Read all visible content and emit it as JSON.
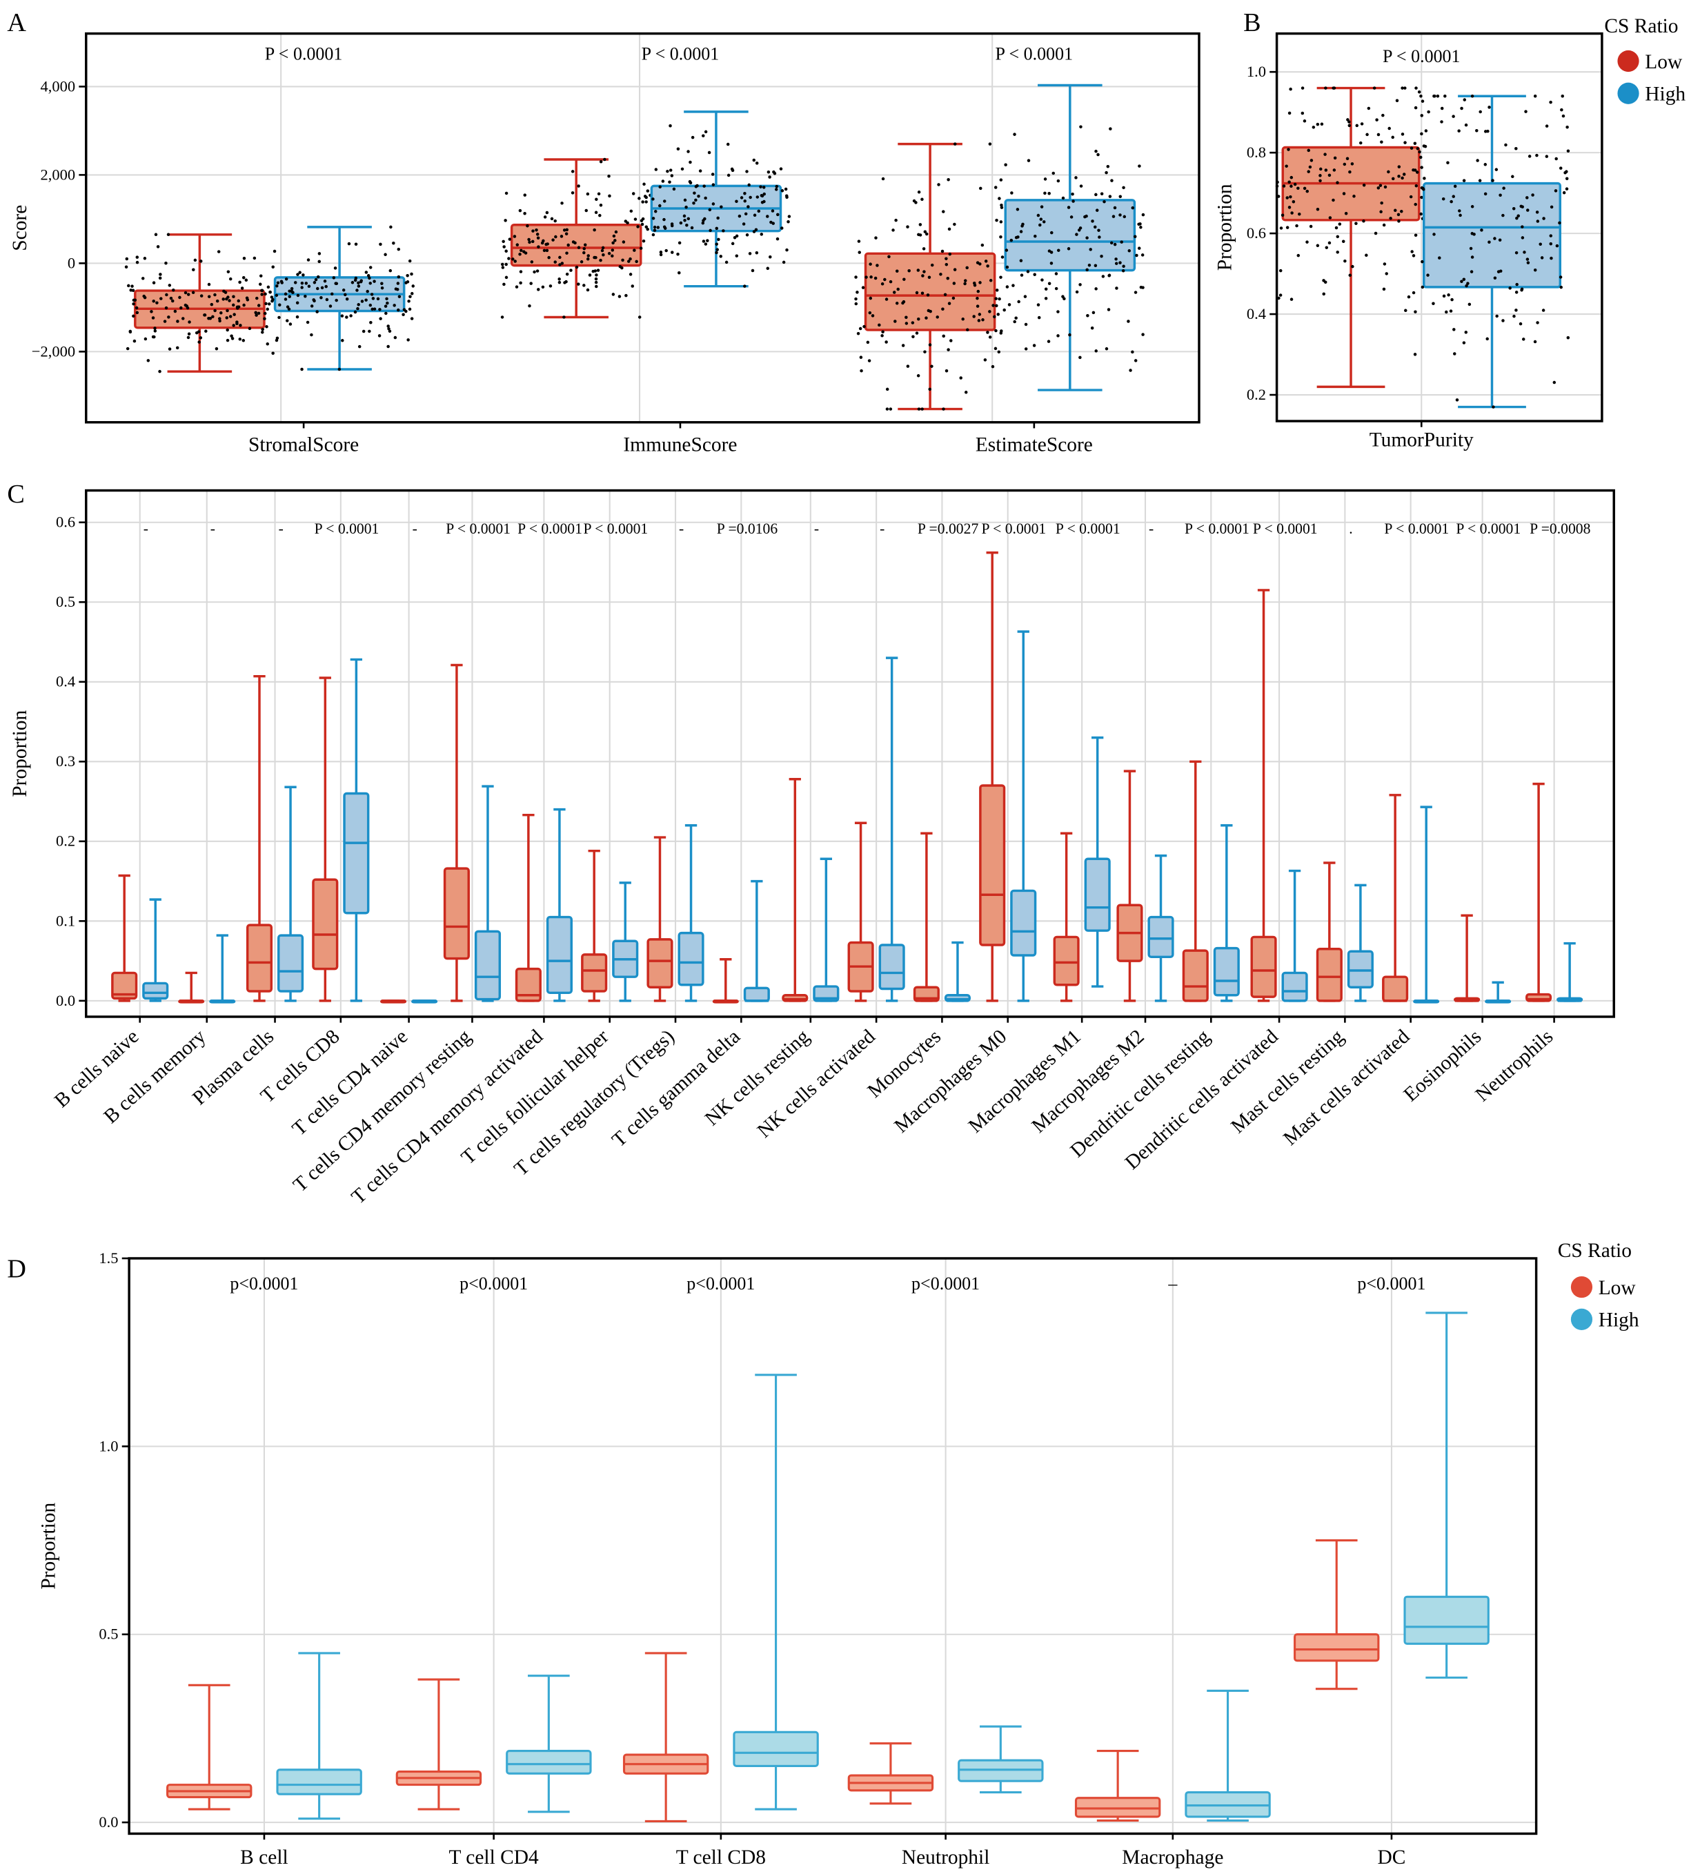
{
  "panel_letters": [
    "A",
    "B",
    "C",
    "D"
  ],
  "legend_top": {
    "title": "CS Ratio",
    "items": [
      {
        "label": "Low",
        "color": "#cc2a1e"
      },
      {
        "label": "High",
        "color": "#1b8fc8"
      }
    ]
  },
  "legend_bottom": {
    "title": "CS Ratio",
    "items": [
      {
        "label": "Low",
        "color": "#e04a35"
      },
      {
        "label": "High",
        "color": "#3aa9d3"
      }
    ]
  },
  "colors": {
    "abc_low_stroke": "#cc2a1e",
    "abc_low_fill": "#e9977b",
    "abc_high_stroke": "#1b8fc8",
    "abc_high_fill": "#a7c9e2",
    "d_low_stroke": "#e04a35",
    "d_low_fill": "#f5a992",
    "d_high_stroke": "#3aa9d3",
    "d_high_fill": "#acdbe7"
  },
  "chart_data": [
    {
      "panel": "A",
      "type": "box",
      "ylabel": "Score",
      "xlabel": "",
      "ylim": [
        -3600,
        5200
      ],
      "grid": true,
      "yticks": [
        {
          "v": 4000,
          "label": "4,000"
        },
        {
          "v": 2000,
          "label": "2,000"
        },
        {
          "v": 0,
          "label": "0"
        },
        {
          "v": -2000,
          "label": "−2,000"
        }
      ],
      "categories": [
        "StromalScore",
        "ImmuneScore",
        "EstimateScore"
      ],
      "pvalues": [
        "P < 0.0001",
        "P < 0.0001",
        "P < 0.0001"
      ],
      "series": [
        {
          "name": "Low",
          "boxes": [
            [
              -2450,
              -1460,
              -1030,
              -620,
              650
            ],
            [
              -1220,
              -50,
              350,
              870,
              2350
            ],
            [
              -3300,
              -1510,
              -730,
              220,
              2700
            ]
          ]
        },
        {
          "name": "High",
          "boxes": [
            [
              -2400,
              -1080,
              -700,
              -320,
              820
            ],
            [
              -520,
              730,
              1240,
              1750,
              3430
            ],
            [
              -2870,
              -160,
              490,
              1430,
              4030
            ]
          ]
        }
      ],
      "box_format": [
        "whisker_low",
        "q1",
        "median",
        "q3",
        "whisker_high"
      ],
      "jittered_points": true
    },
    {
      "panel": "B",
      "type": "box",
      "ylabel": "Proportion",
      "xlabel": "",
      "ylim": [
        0.135,
        1.095
      ],
      "grid": true,
      "yticks": [
        {
          "v": 1.0,
          "label": "1.0"
        },
        {
          "v": 0.8,
          "label": "0.8"
        },
        {
          "v": 0.6,
          "label": "0.6"
        },
        {
          "v": 0.4,
          "label": "0.4"
        },
        {
          "v": 0.2,
          "label": "0.2"
        }
      ],
      "categories": [
        "TumorPurity"
      ],
      "pvalues": [
        "P < 0.0001"
      ],
      "series": [
        {
          "name": "Low",
          "boxes": [
            [
              0.22,
              0.633,
              0.724,
              0.813,
              0.96
            ]
          ]
        },
        {
          "name": "High",
          "boxes": [
            [
              0.17,
              0.467,
              0.615,
              0.724,
              0.94
            ]
          ]
        }
      ],
      "box_format": [
        "whisker_low",
        "q1",
        "median",
        "q3",
        "whisker_high"
      ],
      "jittered_points": true
    },
    {
      "panel": "C",
      "type": "box",
      "ylabel": "Proportion",
      "xlabel": "",
      "ylim": [
        -0.02,
        0.64
      ],
      "grid": true,
      "yticks": [
        {
          "v": 0.6,
          "label": "0.6"
        },
        {
          "v": 0.5,
          "label": "0.5"
        },
        {
          "v": 0.4,
          "label": "0.4"
        },
        {
          "v": 0.3,
          "label": "0.3"
        },
        {
          "v": 0.2,
          "label": "0.2"
        },
        {
          "v": 0.1,
          "label": "0.1"
        },
        {
          "v": 0.0,
          "label": "0.0"
        }
      ],
      "categories": [
        "B cells naive",
        "B cells memory",
        "Plasma cells",
        "T cells CD8",
        "T cells CD4 naive",
        "T cells CD4 memory resting",
        "T cells CD4 memory activated",
        "T cells follicular helper",
        "T cells regulatory (Tregs)",
        "T cells gamma delta",
        "NK cells resting",
        "NK cells activated",
        "Monocytes",
        "Macrophages M0",
        "Macrophages M1",
        "Macrophages M2",
        "Dendritic cells resting",
        "Dendritic cells activated",
        "Mast cells resting",
        "Mast cells activated",
        "Eosinophils",
        "Neutrophils"
      ],
      "pvalues": [
        "-",
        "-",
        "-",
        "P < 0.0001",
        "-",
        "P < 0.0001",
        "P < 0.0001",
        "P < 0.0001",
        "-",
        "P =0.0106",
        "-",
        "-",
        "P =0.0027",
        "P < 0.0001",
        "P < 0.0001",
        "-",
        "P < 0.0001",
        "P < 0.0001",
        ".",
        "P < 0.0001",
        "P < 0.0001",
        "P =0.0008"
      ],
      "series": [
        {
          "name": "Low",
          "boxes": [
            [
              0,
              0.003,
              0.008,
              0.035,
              0.157
            ],
            [
              0,
              0,
              0,
              0,
              0.035
            ],
            [
              0,
              0.012,
              0.048,
              0.095,
              0.407
            ],
            [
              0,
              0.04,
              0.083,
              0.152,
              0.405
            ],
            [
              0,
              0,
              0,
              0,
              0
            ],
            [
              0,
              0.053,
              0.093,
              0.166,
              0.421
            ],
            [
              0,
              0,
              0.007,
              0.04,
              0.233
            ],
            [
              0,
              0.012,
              0.038,
              0.058,
              0.188
            ],
            [
              0,
              0.017,
              0.05,
              0.077,
              0.205
            ],
            [
              0,
              0,
              0,
              0,
              0.052
            ],
            [
              0,
              0,
              0.002,
              0.007,
              0.278
            ],
            [
              0,
              0.012,
              0.043,
              0.073,
              0.223
            ],
            [
              0,
              0,
              0.003,
              0.017,
              0.21
            ],
            [
              0,
              0.07,
              0.133,
              0.27,
              0.562
            ],
            [
              0,
              0.02,
              0.048,
              0.08,
              0.21
            ],
            [
              0,
              0.05,
              0.085,
              0.12,
              0.288
            ],
            [
              0,
              0,
              0.018,
              0.063,
              0.3
            ],
            [
              0,
              0.005,
              0.038,
              0.08,
              0.515
            ],
            [
              0,
              0,
              0.03,
              0.065,
              0.173
            ],
            [
              0,
              0,
              0,
              0.03,
              0.258
            ],
            [
              0,
              0,
              0,
              0.003,
              0.107
            ],
            [
              0,
              0,
              0.002,
              0.008,
              0.272
            ]
          ]
        },
        {
          "name": "High",
          "boxes": [
            [
              0,
              0.003,
              0.01,
              0.022,
              0.127
            ],
            [
              0,
              0,
              0,
              0,
              0.082
            ],
            [
              0,
              0.012,
              0.037,
              0.082,
              0.268
            ],
            [
              0,
              0.11,
              0.198,
              0.26,
              0.428
            ],
            [
              0,
              0,
              0,
              0,
              0
            ],
            [
              0,
              0.002,
              0.03,
              0.087,
              0.269
            ],
            [
              0,
              0.01,
              0.05,
              0.105,
              0.24
            ],
            [
              0,
              0.03,
              0.052,
              0.075,
              0.148
            ],
            [
              0,
              0.02,
              0.048,
              0.085,
              0.22
            ],
            [
              0,
              0,
              0,
              0.016,
              0.15
            ],
            [
              0,
              0,
              0.003,
              0.018,
              0.178
            ],
            [
              0,
              0.015,
              0.035,
              0.07,
              0.43
            ],
            [
              0,
              0,
              0.002,
              0.007,
              0.073
            ],
            [
              0,
              0.057,
              0.087,
              0.138,
              0.463
            ],
            [
              0.018,
              0.088,
              0.117,
              0.178,
              0.33
            ],
            [
              0,
              0.055,
              0.078,
              0.105,
              0.182
            ],
            [
              0,
              0.007,
              0.025,
              0.066,
              0.22
            ],
            [
              0,
              0,
              0.012,
              0.035,
              0.163
            ],
            [
              0,
              0.017,
              0.038,
              0.062,
              0.145
            ],
            [
              0,
              0,
              0,
              0,
              0.243
            ],
            [
              0,
              0,
              0,
              0,
              0.023
            ],
            [
              0,
              0,
              0,
              0.003,
              0.072
            ]
          ]
        }
      ],
      "box_format": [
        "whisker_low",
        "q1",
        "median",
        "q3",
        "whisker_high"
      ]
    },
    {
      "panel": "D",
      "type": "box",
      "ylabel": "Proportion",
      "xlabel": "",
      "ylim": [
        -0.03,
        1.5
      ],
      "grid": true,
      "yticks": [
        {
          "v": 1.5,
          "label": "1.5"
        },
        {
          "v": 1.0,
          "label": "1.0"
        },
        {
          "v": 0.5,
          "label": "0.5"
        },
        {
          "v": 0.0,
          "label": "0.0"
        }
      ],
      "categories": [
        "B cell",
        "T cell CD4",
        "T cell CD8",
        "Neutrophil",
        "Macrophage",
        "DC"
      ],
      "pvalues": [
        "p<0.0001",
        "p<0.0001",
        "p<0.0001",
        "p<0.0001",
        "–",
        "p<0.0001"
      ],
      "series": [
        {
          "name": "Low",
          "boxes": [
            [
              0.035,
              0.067,
              0.083,
              0.1,
              0.365
            ],
            [
              0.035,
              0.1,
              0.118,
              0.135,
              0.38
            ],
            [
              0.003,
              0.13,
              0.155,
              0.18,
              0.45
            ],
            [
              0.05,
              0.085,
              0.105,
              0.125,
              0.21
            ],
            [
              0.005,
              0.015,
              0.037,
              0.065,
              0.19
            ],
            [
              0.355,
              0.43,
              0.46,
              0.5,
              0.75
            ]
          ]
        },
        {
          "name": "High",
          "boxes": [
            [
              0.01,
              0.075,
              0.1,
              0.14,
              0.45
            ],
            [
              0.028,
              0.13,
              0.155,
              0.19,
              0.39
            ],
            [
              0.035,
              0.15,
              0.185,
              0.24,
              1.19
            ],
            [
              0.08,
              0.11,
              0.14,
              0.165,
              0.255
            ],
            [
              0.005,
              0.015,
              0.045,
              0.08,
              0.35
            ],
            [
              0.385,
              0.475,
              0.52,
              0.6,
              1.355
            ]
          ]
        }
      ],
      "box_format": [
        "whisker_low",
        "q1",
        "median",
        "q3",
        "whisker_high"
      ]
    }
  ]
}
